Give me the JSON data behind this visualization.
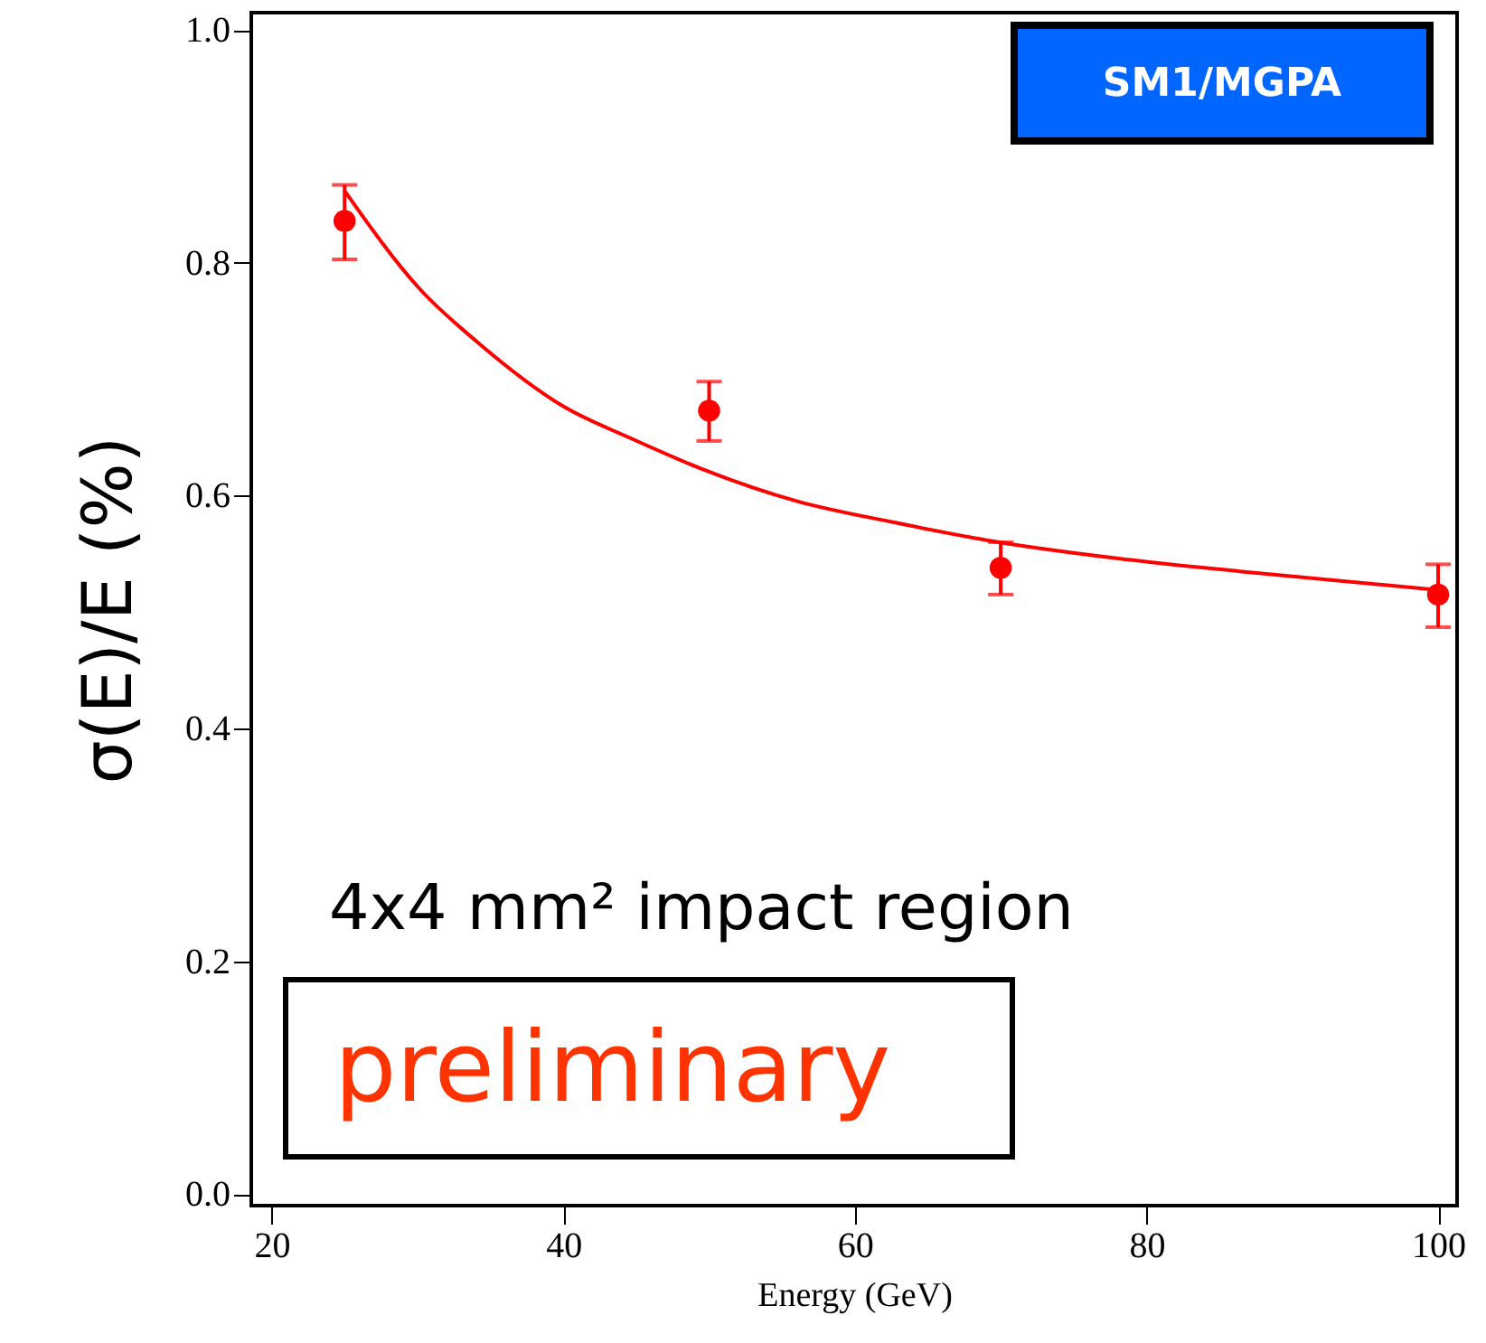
{
  "chart_data": {
    "type": "scatter",
    "xlabel": "Energy (GeV)",
    "ylabel": "σ(E)/E  (%)",
    "xlim": [
      18.6,
      101.3
    ],
    "ylim": [
      -0.01,
      1.015
    ],
    "xticks": [
      20,
      40,
      60,
      80,
      100
    ],
    "yticks": [
      {
        "value": 0,
        "label": "0.0"
      },
      {
        "value": 0.2,
        "label": "0.2"
      },
      {
        "value": 0.4,
        "label": "0.4"
      },
      {
        "value": 0.6,
        "label": "0.6"
      },
      {
        "value": 0.8,
        "label": "0.8"
      },
      {
        "value": 1,
        "label": "1.0"
      }
    ],
    "grid": false,
    "marker": "circle",
    "series": [
      {
        "color": "#ff0000",
        "x": [
          25,
          50,
          70,
          100
        ],
        "values": [
          0.836,
          0.673,
          0.538,
          0.515
        ],
        "errors": [
          [
            0.803,
            0.867
          ],
          [
            0.647,
            0.698
          ],
          [
            0.515,
            0.56
          ],
          [
            0.487,
            0.541
          ]
        ]
      },
      {
        "type": "line",
        "color": "#ff0000",
        "line_style": "solid",
        "marker": "none",
        "x": [
          25,
          30.2,
          34.1,
          40.1,
          44.5,
          49.5,
          56.1,
          62.7,
          69.9,
          78.1,
          86.4,
          100
        ],
        "values": [
          0.862,
          0.777,
          0.732,
          0.676,
          0.65,
          0.623,
          0.595,
          0.577,
          0.56,
          0.546,
          0.535,
          0.519
        ]
      }
    ],
    "annotations": [
      "SM1/MGPA",
      "4x4 mm² impact region",
      "preliminary"
    ]
  }
}
